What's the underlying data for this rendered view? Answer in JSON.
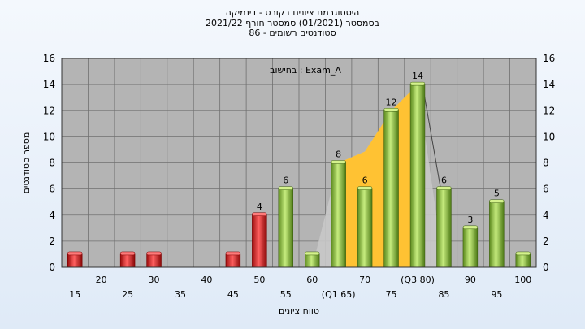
{
  "title_lines": [
    "היסטוגרמת ציונים בקורס - דינמיקה",
    "בסמסטר  (01/2021)  סמסטר חורף 2021/22",
    "סטודנטים רשומים - 86"
  ],
  "colors": {
    "fail": "#e02020",
    "pass": "#8cc63f",
    "iqr_area": "#ffc233",
    "whisker_area": "#c8c8c8",
    "plot_bg": "#b4b4b4",
    "grid": "#707070"
  },
  "chart_data": {
    "type": "bar",
    "annotation": "בחישוב : Exam_A",
    "xlabel": "טווח ציונים",
    "ylabel": "מספר סטודנטים",
    "ylim": [
      0,
      16
    ],
    "yticks": [
      0,
      2,
      4,
      6,
      8,
      10,
      12,
      14,
      16
    ],
    "grid": true,
    "categories": [
      "15",
      "20",
      "25",
      "30",
      "35",
      "40",
      "45",
      "50",
      "55",
      "60",
      "65",
      "70",
      "75",
      "80",
      "85",
      "90",
      "95",
      "100"
    ],
    "tick_labels": [
      "15",
      "20",
      "25",
      "30",
      "35",
      "40",
      "45",
      "50",
      "55",
      "60",
      "(Q1 65)",
      "70",
      "75",
      "(Q3 80)",
      "85",
      "90",
      "95",
      "100"
    ],
    "values": [
      1,
      0,
      1,
      1,
      0,
      0,
      1,
      4,
      6,
      1,
      8,
      6,
      12,
      14,
      6,
      3,
      5,
      1
    ],
    "value_labels": [
      "",
      "",
      "",
      "",
      "",
      "",
      "",
      "4",
      "6",
      "",
      "8",
      "6",
      "12",
      "14",
      "6",
      "3",
      "5",
      ""
    ],
    "fail_threshold": 50,
    "quartiles": {
      "q1": 65,
      "q3": 80
    }
  }
}
